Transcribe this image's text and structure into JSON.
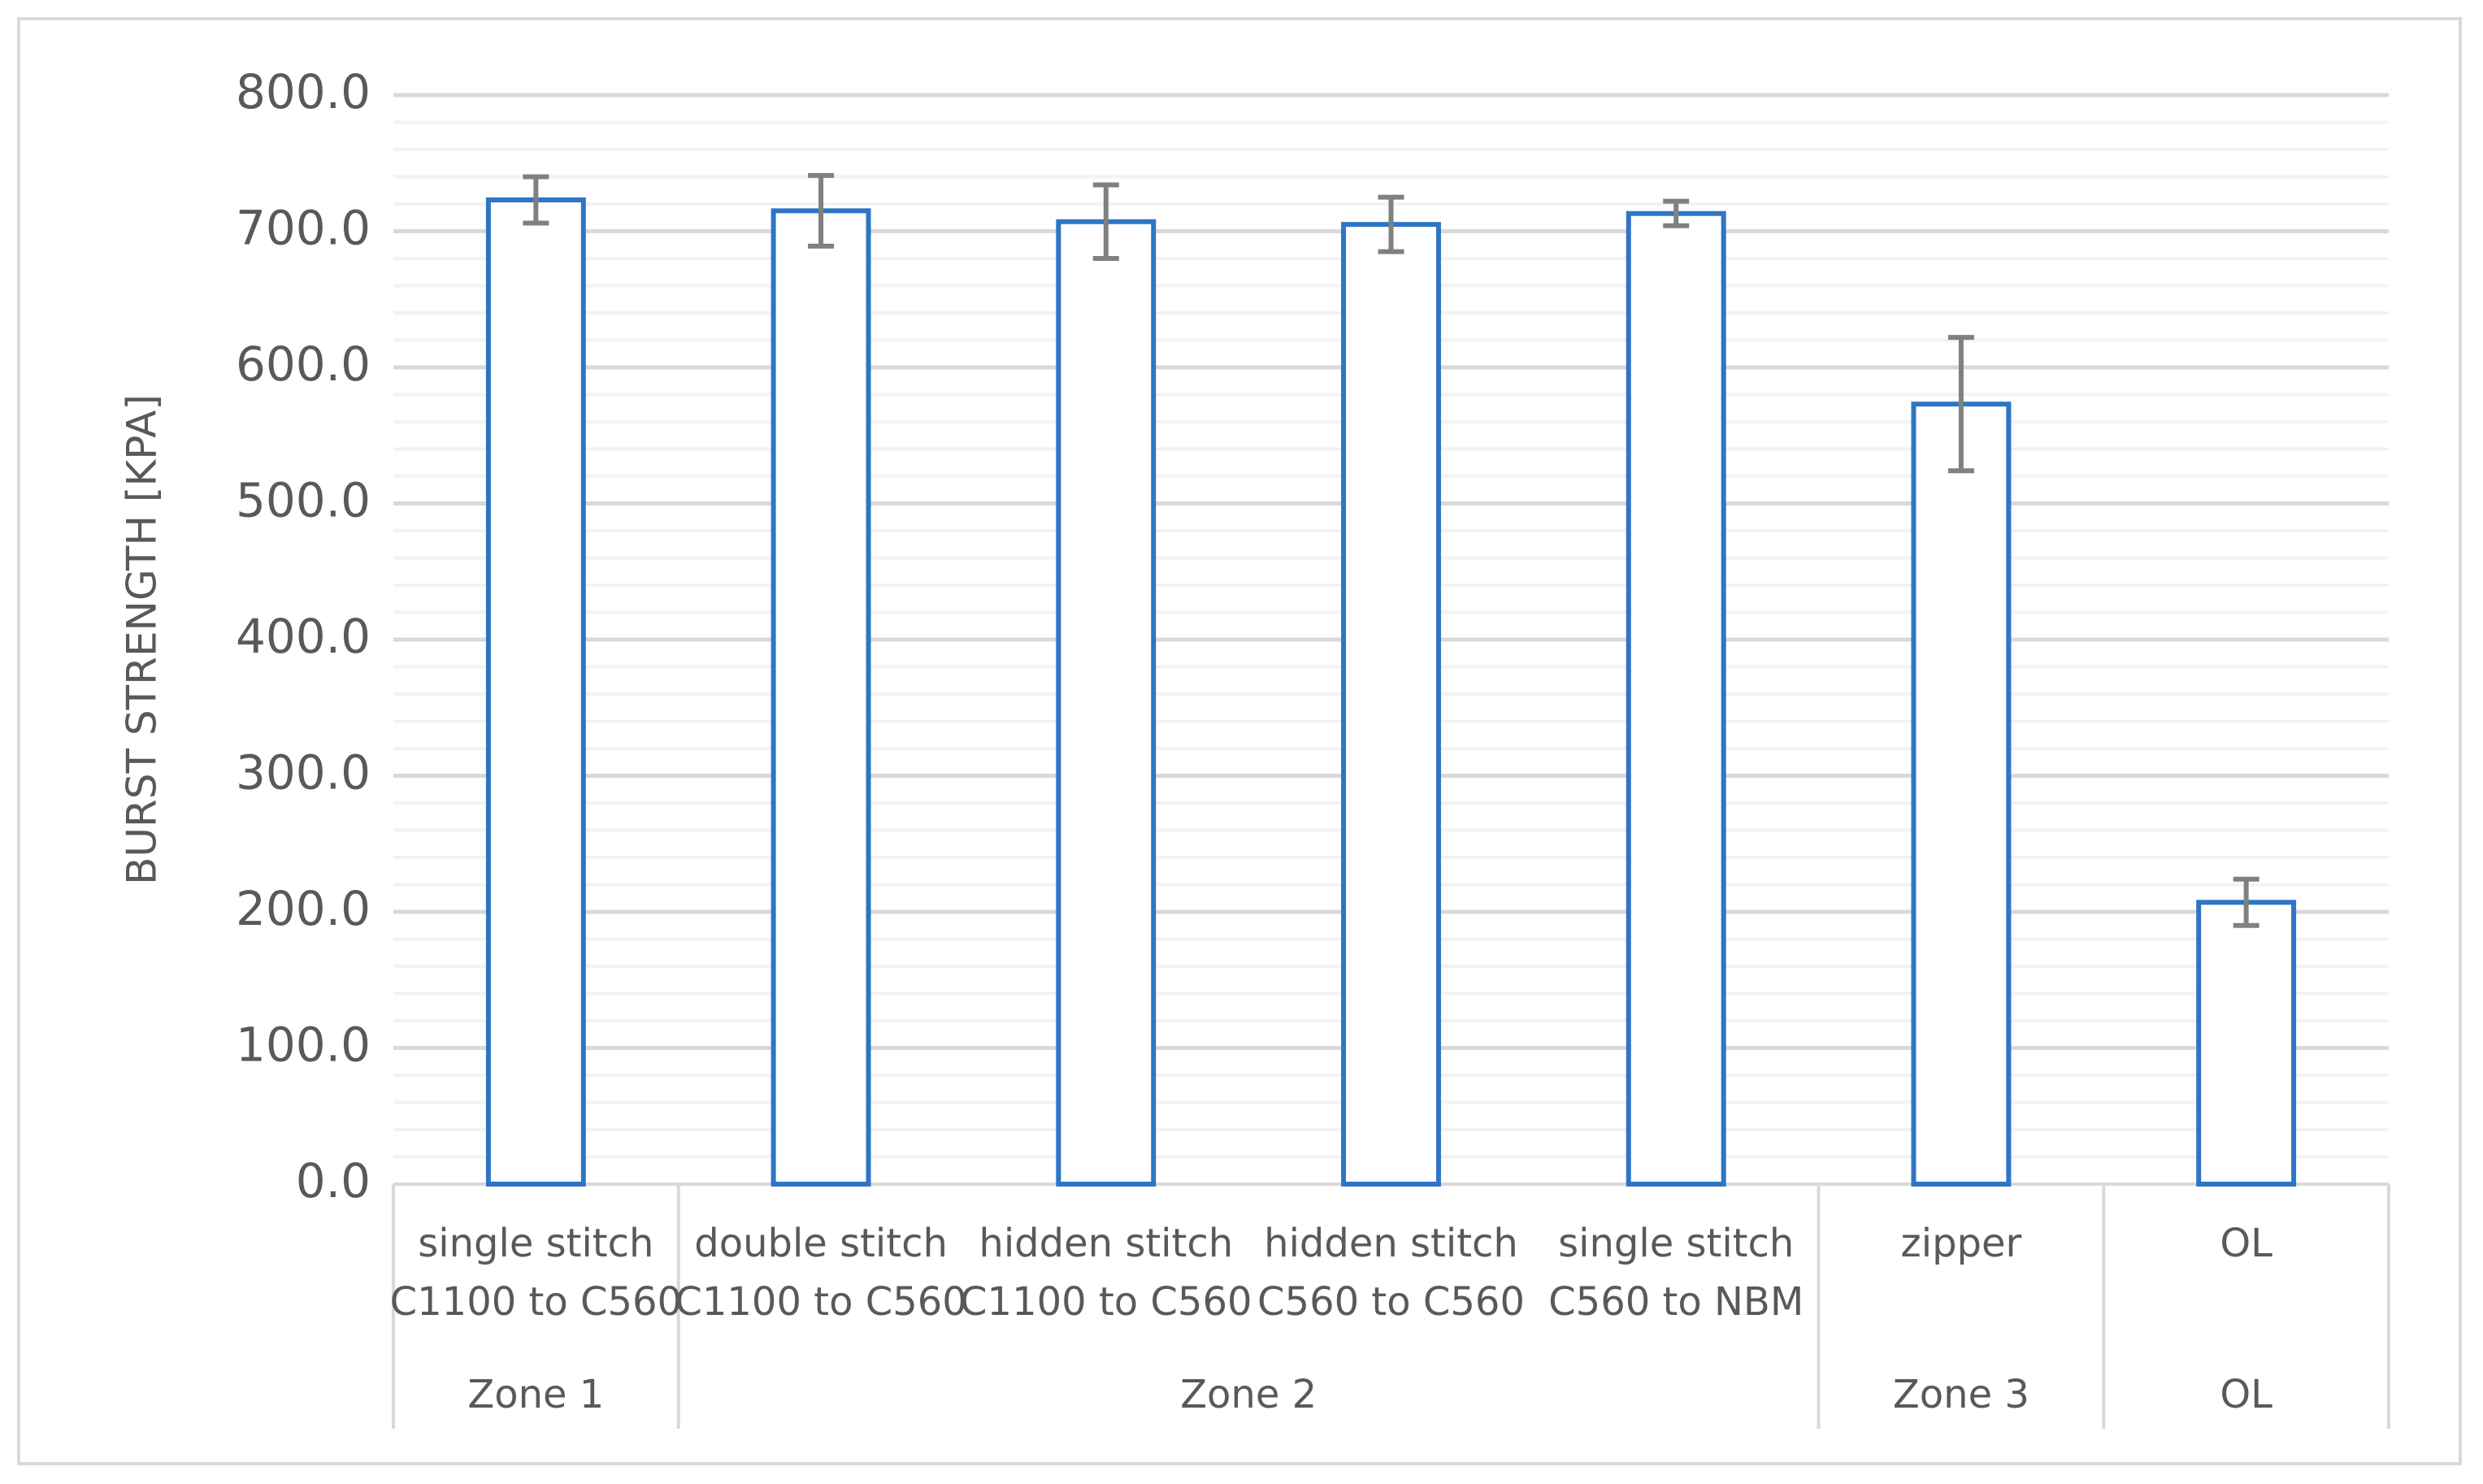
{
  "chart_data": {
    "type": "bar",
    "y_axis_label": "BURST STRENGTH [KPA]",
    "categories": [
      [
        "single stitch",
        "C1100 to C560"
      ],
      [
        "double stitch",
        "C1100 to C560"
      ],
      [
        "hidden stitch",
        "C1100 to C560"
      ],
      [
        "hidden stitch",
        "C560 to C560"
      ],
      [
        "single stitch",
        "C560 to NBM"
      ],
      [
        "zipper"
      ],
      [
        "OL"
      ]
    ],
    "groups": [
      {
        "name": "Zone 1",
        "size": 1
      },
      {
        "name": "Zone 2",
        "size": 4
      },
      {
        "name": "Zone 3",
        "size": 1
      },
      {
        "name": "OL",
        "size": 1
      }
    ],
    "values": [
      723,
      715,
      707,
      705,
      713,
      573,
      207
    ],
    "errors": [
      17,
      26,
      27,
      20,
      9,
      49,
      17
    ],
    "color": "#2e75c6",
    "error_color": "#808080",
    "ylim": [
      0,
      800
    ],
    "yticks": [
      {
        "value": 0,
        "label": "0.0"
      },
      {
        "value": 100,
        "label": "100.0"
      },
      {
        "value": 200,
        "label": "200.0"
      },
      {
        "value": 300,
        "label": "300.0"
      },
      {
        "value": 400,
        "label": "400.0"
      },
      {
        "value": 500,
        "label": "500.0"
      },
      {
        "value": 600,
        "label": "600.0"
      },
      {
        "value": 700,
        "label": "700.0"
      },
      {
        "value": 800,
        "label": "800.0"
      }
    ],
    "minor_yticks": [
      20,
      40,
      60,
      80,
      120,
      140,
      160,
      180,
      220,
      240,
      260,
      280,
      320,
      340,
      360,
      380,
      420,
      440,
      460,
      480,
      520,
      540,
      560,
      580,
      620,
      640,
      660,
      680,
      720,
      740,
      760,
      780
    ],
    "grid": true
  }
}
